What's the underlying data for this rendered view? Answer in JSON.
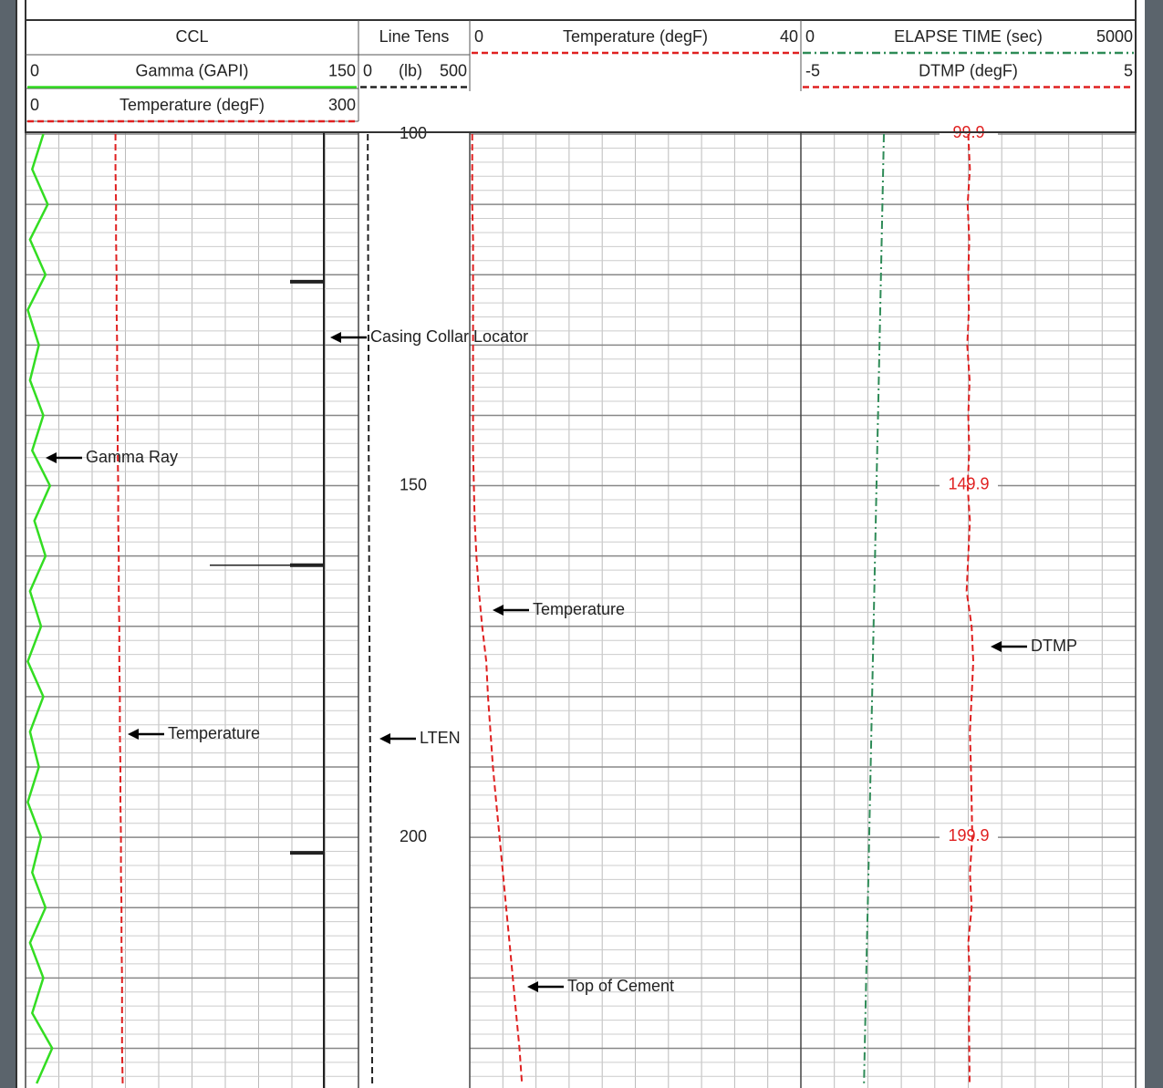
{
  "chart_data": {
    "type": "well-log",
    "ylim": [
      100,
      235
    ],
    "yticks": [
      100,
      150,
      200
    ],
    "depth_labels": [
      99.9,
      149.9,
      199.9
    ],
    "depth": [
      100,
      105,
      110,
      115,
      120,
      125,
      130,
      135,
      140,
      145,
      150,
      155,
      160,
      165,
      170,
      175,
      180,
      185,
      190,
      195,
      200,
      205,
      210,
      215,
      220,
      225,
      230,
      235
    ],
    "ccl_depths": [
      121,
      161.3,
      202.2
    ],
    "grid": true,
    "tracks": [
      {
        "name": "CCL",
        "curves": [
          {
            "name": "Gamma (GAPI)",
            "color": "#33dd22",
            "style": "solid",
            "xlim": [
              0,
              150
            ],
            "values": [
              8,
              3,
              10,
              2,
              9,
              1,
              6,
              2,
              8,
              3,
              11,
              4,
              9,
              2,
              7,
              1,
              8,
              2,
              6,
              1,
              7,
              3,
              9,
              2,
              8,
              3,
              12,
              5
            ]
          },
          {
            "name": "Temperature (degF)",
            "color": "#e02020",
            "style": "dashed",
            "xlim": [
              0,
              300
            ],
            "values": [
              81,
              81,
              81.5,
              81.5,
              82,
              82,
              82.5,
              82.5,
              83,
              83,
              83.5,
              83.5,
              84,
              84,
              84.5,
              84.5,
              85,
              85,
              85.5,
              85.5,
              86,
              86,
              86.5,
              86.5,
              87,
              87,
              87,
              87.5
            ]
          }
        ]
      },
      {
        "curves": [
          {
            "name": "Line Tens",
            "unit": "(lb)",
            "color": "#222222",
            "style": "dashed",
            "xlim": [
              0,
              500
            ],
            "values": [
              42,
              42,
              43,
              43,
              44,
              44,
              45,
              45,
              46,
              46,
              47,
              47,
              48,
              48,
              49,
              50,
              51,
              52,
              53,
              54,
              55,
              56,
              57,
              58,
              59,
              60,
              61,
              62
            ]
          }
        ]
      },
      {
        "curves": [
          {
            "name": "Temperature (degF)",
            "color": "#e02020",
            "style": "dashed",
            "xlim": [
              0,
              40
            ],
            "values": [
              0.3,
              0.3,
              0.3,
              0.4,
              0.4,
              0.4,
              0.4,
              0.4,
              0.4,
              0.4,
              0.5,
              0.6,
              0.8,
              1.1,
              1.5,
              2.0,
              2.2,
              2.5,
              2.8,
              3.2,
              3.6,
              4.0,
              4.4,
              4.8,
              5.2,
              5.6,
              6.0,
              6.3
            ]
          }
        ]
      },
      {
        "curves": [
          {
            "name": "ELAPSE TIME (sec)",
            "color": "#2e8b57",
            "style": "dash-dot",
            "xlim": [
              0,
              5000
            ],
            "values": [
              1240,
              1229,
              1218,
              1207,
              1196,
              1185,
              1174,
              1163,
              1152,
              1141,
              1130,
              1119,
              1108,
              1097,
              1086,
              1075,
              1064,
              1053,
              1042,
              1031,
              1020,
              1009,
              998,
              987,
              976,
              965,
              954,
              943
            ]
          },
          {
            "name": "DTMP (degF)",
            "color": "#e02020",
            "style": "dashed",
            "xlim": [
              -5,
              5
            ],
            "values": [
              0,
              0.05,
              -0.02,
              0.03,
              0,
              0.02,
              -0.03,
              0.04,
              0,
              0.03,
              -0.02,
              0.05,
              0,
              -0.05,
              0.1,
              0.15,
              0.1,
              0.05,
              0.08,
              0.1,
              0.12,
              0.05,
              0.1,
              0,
              0.05,
              0.02,
              0.03,
              0.04
            ]
          }
        ]
      }
    ],
    "annotations": [
      "Casing Collar Locator",
      "Gamma Ray",
      "Temperature",
      "LTEN",
      "Temperature",
      "DTMP",
      "Top of Cement"
    ]
  }
}
